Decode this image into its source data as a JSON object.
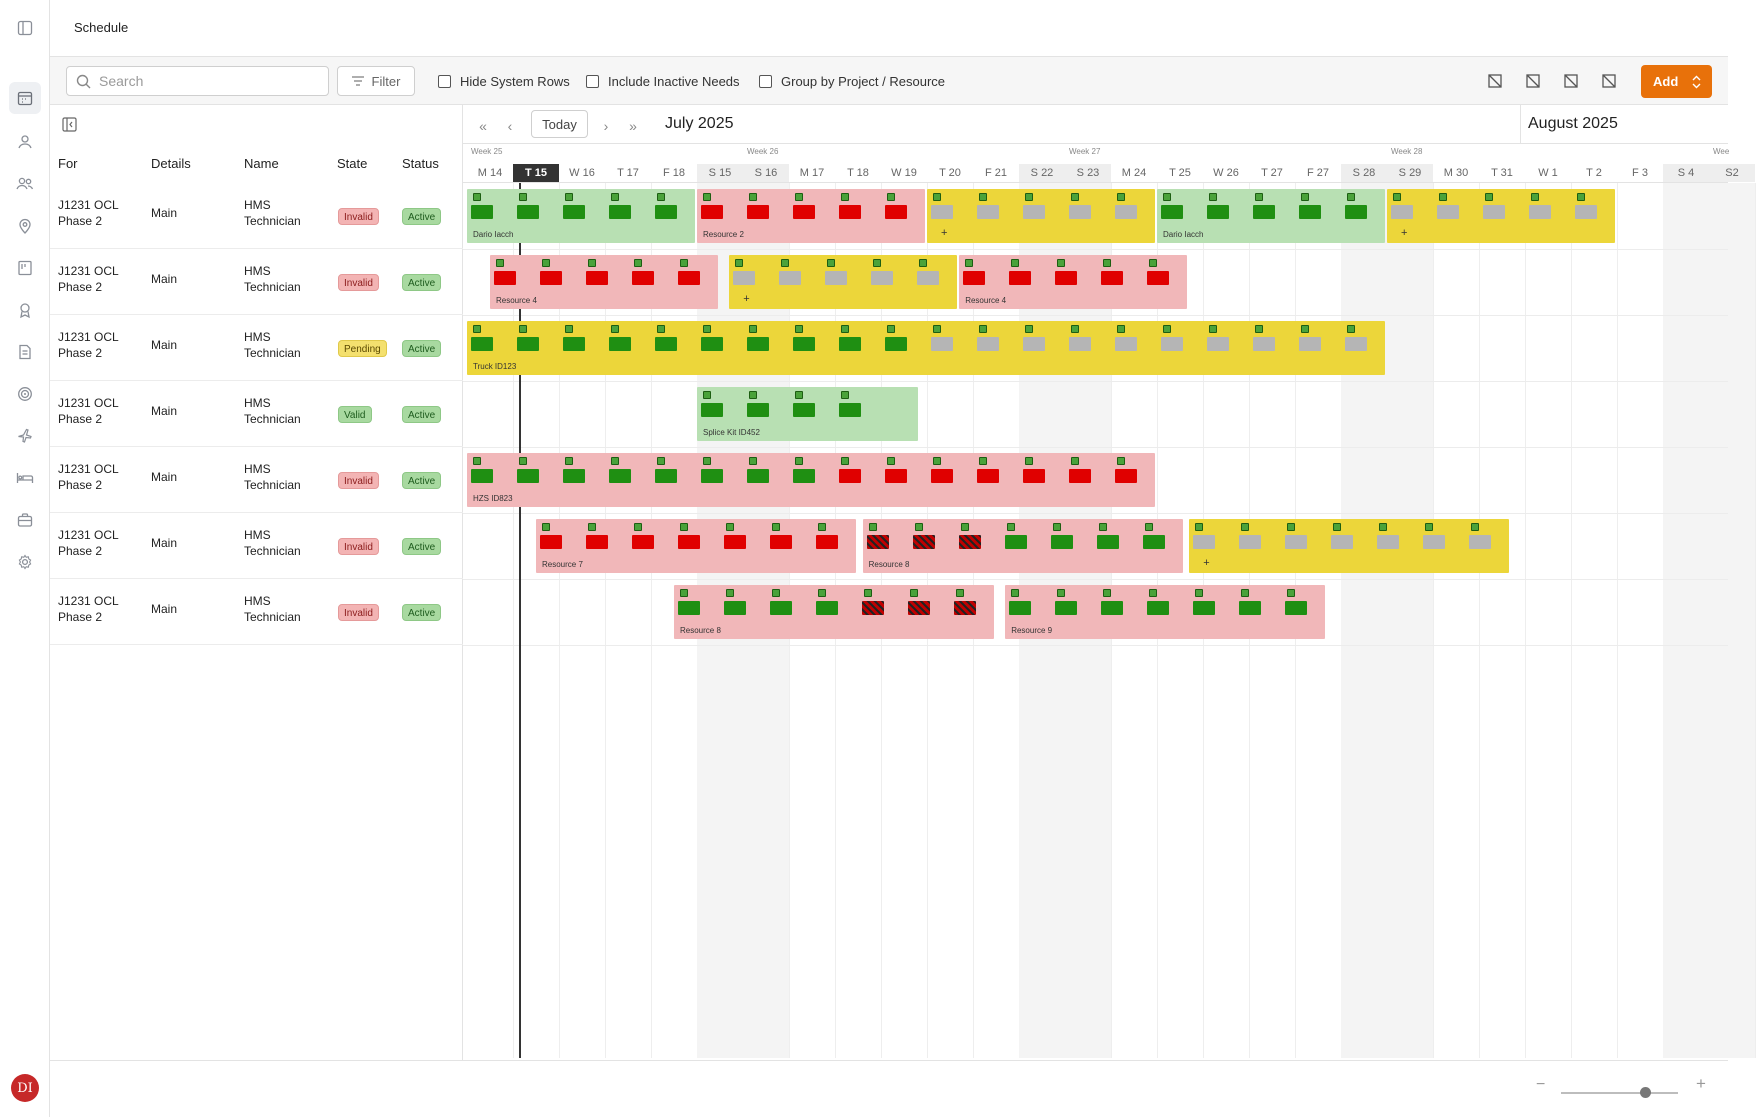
{
  "app": {
    "page_title": "Schedule"
  },
  "user": {
    "initials": "DI"
  },
  "sidebar": {
    "icons": [
      "sidebar-toggle-icon",
      "calendar-icon",
      "resource-icon",
      "people-icon",
      "location-icon",
      "board-icon",
      "badge-icon",
      "checklist-icon",
      "target-icon",
      "plane-icon",
      "bed-icon",
      "briefcase-icon",
      "settings-icon"
    ]
  },
  "toolbar": {
    "search_placeholder": "Search",
    "filter_label": "Filter",
    "hide_system_rows": "Hide System Rows",
    "include_inactive": "Include Inactive Needs",
    "group_by": "Group by Project / Resource",
    "add_label": "Add"
  },
  "columns": [
    "For",
    "Details",
    "Name",
    "State",
    "Status"
  ],
  "rows": [
    {
      "for": [
        "J1231 OCL",
        "Phase 2"
      ],
      "details": "Main",
      "name": [
        "HMS",
        "Technician"
      ],
      "state": "Invalid",
      "status": "Active"
    },
    {
      "for": [
        "J1231 OCL",
        "Phase 2"
      ],
      "details": "Main",
      "name": [
        "HMS",
        "Technician"
      ],
      "state": "Invalid",
      "status": "Active"
    },
    {
      "for": [
        "J1231 OCL",
        "Phase 2"
      ],
      "details": "Main",
      "name": [
        "HMS",
        "Technician"
      ],
      "state": "Pending",
      "status": "Active"
    },
    {
      "for": [
        "J1231 OCL",
        "Phase 2"
      ],
      "details": "Main",
      "name": [
        "HMS",
        "Technician"
      ],
      "state": "Valid",
      "status": "Active"
    },
    {
      "for": [
        "J1231 OCL",
        "Phase 2"
      ],
      "details": "Main",
      "name": [
        "HMS",
        "Technician"
      ],
      "state": "Invalid",
      "status": "Active"
    },
    {
      "for": [
        "J1231 OCL",
        "Phase 2"
      ],
      "details": "Main",
      "name": [
        "HMS",
        "Technician"
      ],
      "state": "Invalid",
      "status": "Active"
    },
    {
      "for": [
        "J1231 OCL",
        "Phase 2"
      ],
      "details": "Main",
      "name": [
        "HMS",
        "Technician"
      ],
      "state": "Invalid",
      "status": "Active"
    }
  ],
  "timeline": {
    "today_label": "Today",
    "months": [
      "July 2025",
      "August 2025"
    ],
    "weeks": [
      "Week 25",
      "Week 26",
      "Week 27",
      "Week 28",
      "Wee"
    ],
    "days": [
      "M 14",
      "T 15",
      "W 16",
      "T 17",
      "F 18",
      "S 15",
      "S 16",
      "M 17",
      "T 18",
      "W 19",
      "T 20",
      "F 21",
      "S 22",
      "S 23",
      "M 24",
      "T 25",
      "W 26",
      "T 27",
      "F 27",
      "S 28",
      "S 29",
      "M 30",
      "T 31",
      "W 1",
      "T 2",
      "F 3",
      "S 4",
      "S2"
    ],
    "today_day": "T 15",
    "weekend_days": [
      "S 15",
      "S 16",
      "S 22",
      "S 23",
      "S 28",
      "S 29",
      "S 4",
      "S2"
    ],
    "bars": [
      {
        "row": 0,
        "start": 0,
        "days": 5,
        "color": "green",
        "label": "Dario Iacch"
      },
      {
        "row": 0,
        "start": 5,
        "days": 5,
        "color": "red",
        "label": "Resource 2"
      },
      {
        "row": 0,
        "start": 10,
        "days": 5,
        "color": "yellow",
        "label": "+"
      },
      {
        "row": 0,
        "start": 15,
        "days": 5,
        "color": "green",
        "label": "Dario Iacch"
      },
      {
        "row": 0,
        "start": 20,
        "days": 5,
        "color": "yellow",
        "label": "+"
      },
      {
        "row": 1,
        "start": 0.5,
        "days": 5,
        "color": "red",
        "label": "Resource 4"
      },
      {
        "row": 1,
        "start": 5.7,
        "days": 5,
        "color": "yellow",
        "label": "+"
      },
      {
        "row": 1,
        "start": 10.7,
        "days": 5,
        "color": "red",
        "label": "Resource 4"
      },
      {
        "row": 2,
        "start": 0,
        "days": 20,
        "color": "yellow",
        "label": "Truck ID123"
      },
      {
        "row": 3,
        "start": 5,
        "days": 4.85,
        "color": "green",
        "label": "Splice Kit ID452"
      },
      {
        "row": 4,
        "start": 0,
        "days": 15,
        "color": "red",
        "label": "HZS ID823"
      },
      {
        "row": 5,
        "start": 1.5,
        "days": 7,
        "color": "red",
        "label": "Resource 7"
      },
      {
        "row": 5,
        "start": 8.6,
        "days": 7,
        "color": "red",
        "label": "Resource 8"
      },
      {
        "row": 5,
        "start": 15.7,
        "days": 7,
        "color": "yellow",
        "label": "+"
      },
      {
        "row": 6,
        "start": 4.5,
        "days": 7,
        "color": "red",
        "label": "Resource 8"
      },
      {
        "row": 6,
        "start": 11.7,
        "days": 7,
        "color": "red",
        "label": "Resource  9"
      }
    ]
  },
  "colors": {
    "accent": "#e8710a",
    "invalid": "#f3b4b4",
    "pending": "#f4e06e",
    "valid": "#a8d9a0",
    "seg_green": "#1f8f12",
    "seg_red": "#e00000"
  },
  "zoom": {
    "level": 0.72
  }
}
